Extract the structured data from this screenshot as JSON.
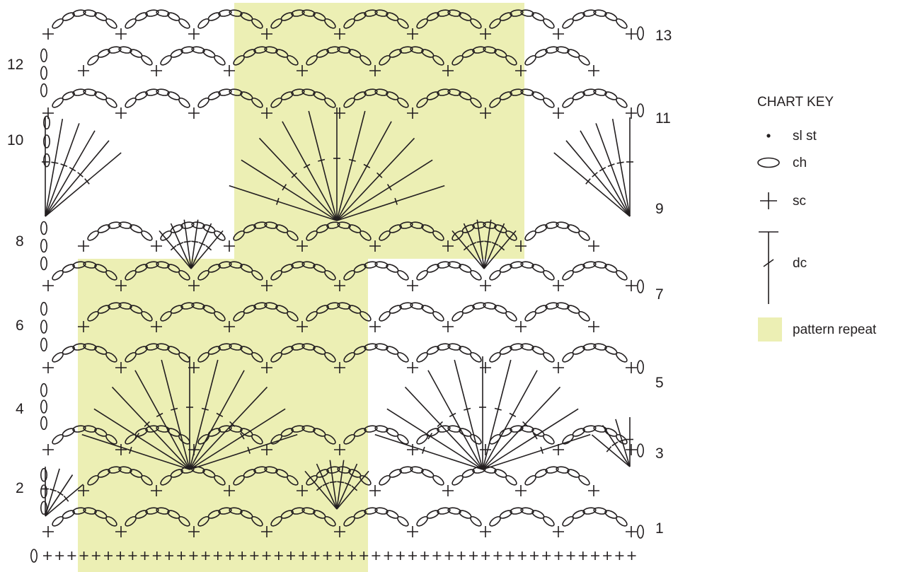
{
  "chart_key": {
    "title": "CHART KEY",
    "items": [
      {
        "symbol": "slip-stitch-dot",
        "label": "sl st"
      },
      {
        "symbol": "chain-oval",
        "label": "ch"
      },
      {
        "symbol": "single-crochet-cross",
        "label": "sc"
      },
      {
        "symbol": "double-crochet-t",
        "label": "dc"
      },
      {
        "symbol": "pattern-repeat-swatch",
        "label": "pattern repeat"
      }
    ]
  },
  "row_numbers": {
    "right": [
      "1",
      "3",
      "5",
      "7",
      "9",
      "11",
      "13"
    ],
    "left": [
      "2",
      "4",
      "6",
      "8",
      "10",
      "12"
    ]
  },
  "colors": {
    "ink": "#231f20",
    "pattern_repeat": "#ecefb4",
    "background": "#ffffff"
  }
}
